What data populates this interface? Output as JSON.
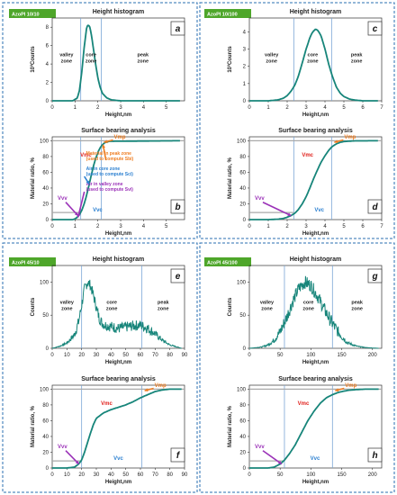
{
  "figure_colors": {
    "curve": "#17857a",
    "border": "#2a6fb0",
    "label_bg": "#4ea62a",
    "vmc": "#e0201b",
    "vmp": "#ee7d22",
    "vvc": "#2a7fd0",
    "vvv": "#9b32b8",
    "guide": "#7aa6d6",
    "flat_line": "#a9a9a9"
  },
  "chart_data": [
    {
      "id": "a",
      "type": "line",
      "sample": "AzoPI 10/10",
      "title": "Height histogram",
      "letter": "a",
      "xlabel": "Height,nm",
      "ylabel": "10³Counts",
      "xlim": [
        0,
        5.8
      ],
      "ylim": [
        0,
        9
      ],
      "xticks": [
        "0",
        "1",
        "2",
        "3",
        "4",
        "5"
      ],
      "yticks": [
        "0",
        "2",
        "4",
        "6",
        "8"
      ],
      "zones": [
        "valley zone",
        "core zone",
        "peak zone"
      ],
      "vlines": [
        1.25,
        2.15
      ],
      "x": [
        0.0,
        0.9,
        1.1,
        1.2,
        1.3,
        1.4,
        1.5,
        1.55,
        1.6,
        1.65,
        1.7,
        1.8,
        1.9,
        2.0,
        2.1,
        2.2,
        2.4,
        2.6,
        2.8,
        3.0,
        3.5,
        4.0,
        5.6
      ],
      "y": [
        0.0,
        0.0,
        0.3,
        1.2,
        3.2,
        5.8,
        7.8,
        8.2,
        8.2,
        8.0,
        7.4,
        5.8,
        4.0,
        2.5,
        1.5,
        0.8,
        0.3,
        0.1,
        0.05,
        0.0,
        0.0,
        0.0,
        0.0
      ]
    },
    {
      "id": "b",
      "type": "line",
      "title": "Surface bearing analysis",
      "letter": "b",
      "xlabel": "Height,nm",
      "ylabel": "Material ratio, %",
      "xlim": [
        0,
        5.8
      ],
      "ylim": [
        0,
        105
      ],
      "xticks": [
        "0",
        "1",
        "2",
        "3",
        "4",
        "5"
      ],
      "yticks": [
        "0",
        "20",
        "40",
        "60",
        "80",
        "100"
      ],
      "vlines": [
        1.25,
        2.15
      ],
      "x": [
        0.0,
        0.9,
        1.0,
        1.1,
        1.2,
        1.3,
        1.4,
        1.5,
        1.6,
        1.7,
        1.8,
        1.9,
        2.0,
        2.1,
        2.2,
        2.3,
        2.5,
        5.6
      ],
      "y": [
        0.0,
        0.0,
        1.0,
        3.0,
        6.5,
        12.0,
        20.0,
        30.0,
        42.0,
        55.0,
        67.0,
        77.0,
        85.0,
        91.0,
        95.0,
        97.5,
        99.3,
        100.0
      ],
      "vmc": "Vmc",
      "vmp": "Vmp",
      "vvc": "Vvc",
      "vvv": "Vvv",
      "notes": [
        {
          "text": [
            "Material in peak zone",
            "(used to compute Sbi)"
          ],
          "color": "vmp"
        },
        {
          "text": [
            "Air in core zone",
            "(used to compute Sci)"
          ],
          "color": "vvc"
        },
        {
          "text": [
            "Air in valley zone",
            "(used to compute Svi)"
          ],
          "color": "vvv"
        }
      ]
    },
    {
      "id": "c",
      "type": "line",
      "sample": "AzoPI 10/100",
      "title": "Height histogram",
      "letter": "c",
      "xlabel": "Height,nm",
      "ylabel": "10³Counts",
      "xlim": [
        0,
        7
      ],
      "ylim": [
        0,
        4.8
      ],
      "xticks": [
        "0",
        "1",
        "2",
        "3",
        "4",
        "5",
        "6",
        "7"
      ],
      "yticks": [
        "0",
        "1",
        "2",
        "3",
        "4"
      ],
      "zones": [
        "valley zone",
        "core zone",
        "peak zone"
      ],
      "vlines": [
        2.35,
        4.35
      ],
      "x": [
        0.0,
        1.0,
        1.5,
        1.8,
        2.0,
        2.2,
        2.4,
        2.6,
        2.8,
        3.0,
        3.2,
        3.3,
        3.4,
        3.5,
        3.6,
        3.7,
        3.8,
        4.0,
        4.2,
        4.4,
        4.6,
        4.8,
        5.0,
        5.3,
        5.6,
        6.0,
        6.8
      ],
      "y": [
        0.0,
        0.0,
        0.05,
        0.15,
        0.3,
        0.55,
        0.9,
        1.45,
        2.2,
        3.0,
        3.65,
        3.9,
        4.05,
        4.15,
        4.1,
        3.95,
        3.75,
        3.0,
        2.1,
        1.4,
        0.8,
        0.45,
        0.25,
        0.1,
        0.04,
        0.0,
        0.0
      ]
    },
    {
      "id": "d",
      "type": "line",
      "title": "Surface bearing analysis",
      "letter": "d",
      "xlabel": "Height,nm",
      "ylabel": "Material ratio, %",
      "xlim": [
        0,
        7
      ],
      "ylim": [
        0,
        105
      ],
      "xticks": [
        "0",
        "1",
        "2",
        "3",
        "4",
        "5",
        "6",
        "7"
      ],
      "yticks": [
        "0",
        "20",
        "40",
        "60",
        "80",
        "100"
      ],
      "vlines": [
        2.35,
        4.35
      ],
      "x": [
        0.0,
        1.0,
        1.5,
        1.8,
        2.0,
        2.2,
        2.4,
        2.6,
        2.8,
        3.0,
        3.2,
        3.4,
        3.6,
        3.8,
        4.0,
        4.2,
        4.4,
        4.6,
        4.8,
        5.0,
        5.5,
        6.8
      ],
      "y": [
        0.0,
        0.0,
        0.5,
        1.5,
        3.0,
        5.0,
        8.0,
        13.0,
        20.0,
        29.0,
        40.0,
        52.0,
        63.0,
        73.0,
        81.0,
        88.0,
        93.0,
        96.0,
        98.0,
        99.0,
        99.8,
        100.0
      ],
      "vmc": "Vmc",
      "vmp": "Vmp",
      "vvc": "Vvc",
      "vvv": "Vvv"
    },
    {
      "id": "e",
      "type": "line",
      "sample": "AzoPI 45/10",
      "title": "Height histogram",
      "letter": "e",
      "xlabel": "Height,nm",
      "ylabel": "Counts",
      "xlim": [
        0,
        90
      ],
      "ylim": [
        0,
        125
      ],
      "xticks": [
        "0",
        "10",
        "20",
        "30",
        "40",
        "50",
        "60",
        "70",
        "80",
        "90"
      ],
      "yticks": [
        "0",
        "50",
        "100"
      ],
      "zones": [
        "valley zone",
        "core zone",
        "peak zone"
      ],
      "vlines": [
        20,
        61
      ],
      "noise": 8,
      "x": [
        0,
        5,
        10,
        15,
        18,
        20,
        22,
        24,
        26,
        28,
        30,
        32,
        34,
        36,
        40,
        45,
        50,
        55,
        60,
        65,
        70,
        75,
        80,
        85,
        88
      ],
      "y": [
        0,
        3,
        8,
        20,
        40,
        65,
        90,
        100,
        95,
        80,
        62,
        45,
        38,
        35,
        33,
        30,
        32,
        34,
        35,
        30,
        22,
        12,
        5,
        2,
        0
      ]
    },
    {
      "id": "f",
      "type": "line",
      "title": "Surface bearing analysis",
      "letter": "f",
      "xlabel": "Height,nm",
      "ylabel": "Material ratio, %",
      "xlim": [
        0,
        90
      ],
      "ylim": [
        0,
        105
      ],
      "xticks": [
        "0",
        "10",
        "20",
        "30",
        "40",
        "50",
        "60",
        "70",
        "80",
        "90"
      ],
      "yticks": [
        "0",
        "20",
        "40",
        "60",
        "80",
        "100"
      ],
      "vlines": [
        20,
        61
      ],
      "x": [
        0,
        10,
        15,
        18,
        20,
        22,
        24,
        26,
        28,
        30,
        35,
        40,
        45,
        50,
        55,
        60,
        65,
        70,
        75,
        80,
        85,
        88
      ],
      "y": [
        0,
        0,
        1,
        5,
        10,
        20,
        32,
        44,
        55,
        63,
        70,
        74,
        77,
        80,
        84,
        89,
        93,
        97,
        99,
        100,
        100,
        100
      ],
      "vmc": "Vmc",
      "vmp": "Vmp",
      "vvc": "Vvc",
      "vvv": "Vvv"
    },
    {
      "id": "g",
      "type": "line",
      "sample": "AzoPI 45/100",
      "title": "Height histogram",
      "letter": "g",
      "xlabel": "Height,nm",
      "ylabel": "Counts",
      "xlim": [
        0,
        215
      ],
      "ylim": [
        0,
        125
      ],
      "xticks": [
        "0",
        "50",
        "100",
        "150",
        "200"
      ],
      "yticks": [
        "0",
        "50",
        "100"
      ],
      "zones": [
        "valley zone",
        "core zone",
        "peak zone"
      ],
      "vlines": [
        57,
        135
      ],
      "noise": 10,
      "x": [
        0,
        20,
        30,
        40,
        50,
        60,
        70,
        80,
        90,
        100,
        110,
        120,
        130,
        140,
        150,
        160,
        175,
        190,
        210
      ],
      "y": [
        0,
        2,
        5,
        12,
        25,
        45,
        70,
        90,
        100,
        95,
        80,
        62,
        45,
        30,
        18,
        8,
        3,
        1,
        0
      ]
    },
    {
      "id": "h",
      "type": "line",
      "title": "Surface bearing analysis",
      "letter": "h",
      "xlabel": "Height,nm",
      "ylabel": "Material ratio, %",
      "xlim": [
        0,
        215
      ],
      "ylim": [
        0,
        105
      ],
      "xticks": [
        "0",
        "50",
        "100",
        "150",
        "200"
      ],
      "yticks": [
        "0",
        "20",
        "40",
        "60",
        "80",
        "100"
      ],
      "vlines": [
        57,
        135
      ],
      "x": [
        0,
        30,
        40,
        50,
        57,
        65,
        75,
        85,
        95,
        105,
        115,
        125,
        135,
        145,
        160,
        175,
        190,
        210
      ],
      "y": [
        0,
        0,
        1,
        5,
        10,
        18,
        30,
        45,
        60,
        72,
        82,
        89,
        93,
        96,
        98.5,
        99.5,
        100,
        100
      ],
      "vmc": "Vmc",
      "vmp": "Vmp",
      "vvc": "Vvc",
      "vvv": "Vvv"
    }
  ]
}
